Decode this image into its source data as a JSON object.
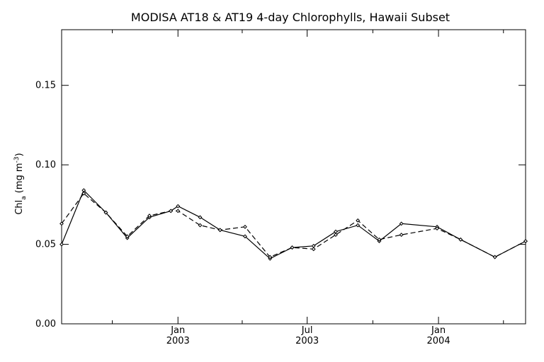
{
  "chart_data": {
    "type": "line",
    "title": "MODISA AT18 & AT19 4-day Chlorophylls, Hawaii Subset",
    "ylabel": {
      "main": "Chl",
      "sub": "a",
      "units_prefix": "(mg m",
      "units_sup": "-3",
      "units_suffix": ")"
    },
    "ylim": [
      0.0,
      0.185
    ],
    "xlim": [
      "2002-07-22",
      "2004-05-02"
    ],
    "y_ticks": [
      {
        "value": 0.0,
        "label": "0.00"
      },
      {
        "value": 0.05,
        "label": "0.05"
      },
      {
        "value": 0.1,
        "label": "0.10"
      },
      {
        "value": 0.15,
        "label": "0.15"
      }
    ],
    "x_major_ticks": [
      {
        "x": "2003-01-01",
        "label1": "Jan",
        "label2": "2003"
      },
      {
        "x": "2003-07-01",
        "label1": "Jul",
        "label2": "2003"
      },
      {
        "x": "2004-01-01",
        "label1": "Jan",
        "label2": "2004"
      }
    ],
    "x_minor_ticks": [
      "2002-10-01",
      "2003-04-01",
      "2003-10-01",
      "2004-04-01"
    ],
    "series": [
      {
        "style": "solid",
        "x": [
          "2002-07-22",
          "2002-08-22",
          "2002-09-22",
          "2002-10-22",
          "2002-11-22",
          "2002-12-22",
          "2003-01-01",
          "2003-02-01",
          "2003-03-01",
          "2003-04-05",
          "2003-05-10",
          "2003-06-10",
          "2003-07-10",
          "2003-08-10",
          "2003-09-10",
          "2003-10-10",
          "2003-11-10",
          "2003-12-30",
          "2004-02-01",
          "2004-03-20",
          "2004-05-02"
        ],
        "y": [
          0.05,
          0.084,
          0.07,
          0.054,
          0.067,
          0.071,
          0.074,
          0.067,
          0.059,
          0.055,
          0.041,
          0.048,
          0.049,
          0.058,
          0.062,
          0.052,
          0.063,
          0.061,
          0.053,
          0.042,
          0.052
        ]
      },
      {
        "style": "dashed",
        "x": [
          "2002-07-22",
          "2002-08-22",
          "2002-09-22",
          "2002-10-22",
          "2002-11-22",
          "2002-12-22",
          "2003-01-01",
          "2003-02-01",
          "2003-03-01",
          "2003-04-05",
          "2003-05-10",
          "2003-06-10",
          "2003-07-10",
          "2003-08-10",
          "2003-09-10",
          "2003-10-10",
          "2003-11-10",
          "2003-12-30",
          "2004-02-01",
          "2004-03-20",
          "2004-05-02"
        ],
        "y": [
          0.063,
          0.082,
          0.07,
          0.055,
          0.068,
          0.071,
          0.071,
          0.062,
          0.059,
          0.061,
          0.042,
          0.048,
          0.047,
          0.056,
          0.065,
          0.053,
          0.056,
          0.06,
          0.053,
          0.042,
          0.052
        ]
      }
    ]
  }
}
